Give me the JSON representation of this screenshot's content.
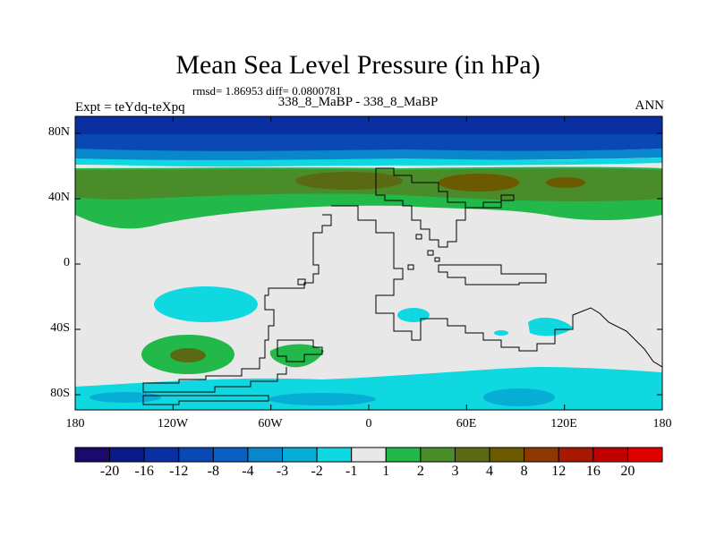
{
  "title": "Mean Sea Level Pressure (in hPa)",
  "stats": "rmsd= 1.86953 diff= 0.0800781",
  "experiment": "Expt = teYdq-teXpq",
  "case_label": "338_8_MaBP - 338_8_MaBP",
  "season": "ANN",
  "lat_ticks": [
    "80N",
    "40N",
    "0",
    "40S",
    "80S"
  ],
  "lon_ticks": [
    "180",
    "120W",
    "60W",
    "0",
    "60E",
    "120E",
    "180"
  ],
  "colorbar": {
    "labels": [
      "-20",
      "-16",
      "-12",
      "-8",
      "-4",
      "-3",
      "-2",
      "-1",
      "1",
      "2",
      "3",
      "4",
      "8",
      "12",
      "16",
      "20"
    ],
    "colors": [
      "#1c0a6b",
      "#0b1a8a",
      "#0a2fa0",
      "#0a48b4",
      "#0a5fc0",
      "#0a86cc",
      "#06aed6",
      "#10d8e0",
      "#e8e8e8",
      "#22b84a",
      "#4a8c2a",
      "#5a6a12",
      "#6b5a00",
      "#8c3800",
      "#a81800",
      "#c00000",
      "#e00000"
    ]
  }
}
